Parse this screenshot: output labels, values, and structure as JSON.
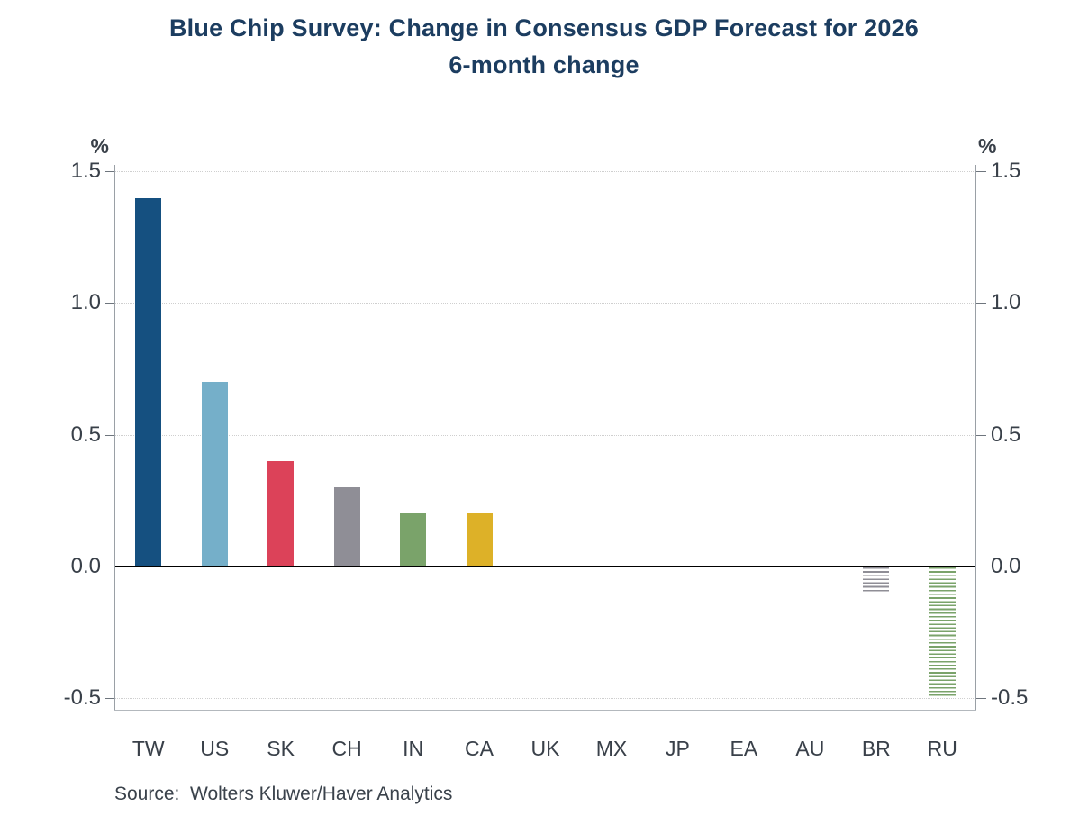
{
  "title": {
    "line1": "Blue Chip Survey: Change in Consensus GDP Forecast for 2026",
    "line2": "6-month change"
  },
  "source_text": "Source:  Wolters Kluwer/Haver Analytics",
  "chart_data": {
    "type": "bar",
    "title": "Blue Chip Survey: Change in Consensus GDP Forecast for 2026",
    "subtitle": "6-month change",
    "unit": "%",
    "categories": [
      "TW",
      "US",
      "SK",
      "CH",
      "IN",
      "CA",
      "UK",
      "MX",
      "JP",
      "EA",
      "AU",
      "BR",
      "RU"
    ],
    "values": [
      1.4,
      0.7,
      0.4,
      0.3,
      0.2,
      0.2,
      0.0,
      0.0,
      0.0,
      0.0,
      0.0,
      -0.1,
      -0.5
    ],
    "bar_colors": [
      "#155080",
      "#75afc9",
      "#dc4259",
      "#8f8e96",
      "#7aa36a",
      "#ddb128",
      "#155080",
      "#155080",
      "#155080",
      "#155080",
      "#155080",
      "#8f8e96",
      "#7aa36a"
    ],
    "bar_patterns": [
      "solid",
      "solid",
      "solid",
      "solid",
      "solid",
      "solid",
      "solid",
      "solid",
      "solid",
      "solid",
      "solid",
      "hatched-horizontal",
      "hatched-horizontal"
    ],
    "ytick_labels": [
      "1.5",
      "1.0",
      "0.5",
      "0.0",
      "-0.5"
    ],
    "ytick_values": [
      1.5,
      1.0,
      0.5,
      0.0,
      -0.5
    ],
    "ylim": [
      -0.545,
      1.525
    ],
    "grid": "horizontal-dotted-at-ticks",
    "zero_line": "solid-black",
    "axis_sides": "both-left-and-right",
    "legend_position": "none",
    "xlabel": "",
    "ylabel": "%",
    "source": "Source:  Wolters Kluwer/Haver Analytics"
  },
  "colors": {
    "title_navy": "#1c3d60",
    "axis_text": "#394049",
    "zero_line": "#000000",
    "gridline": "#cfcfcf",
    "spine": "#9aa0a6"
  }
}
